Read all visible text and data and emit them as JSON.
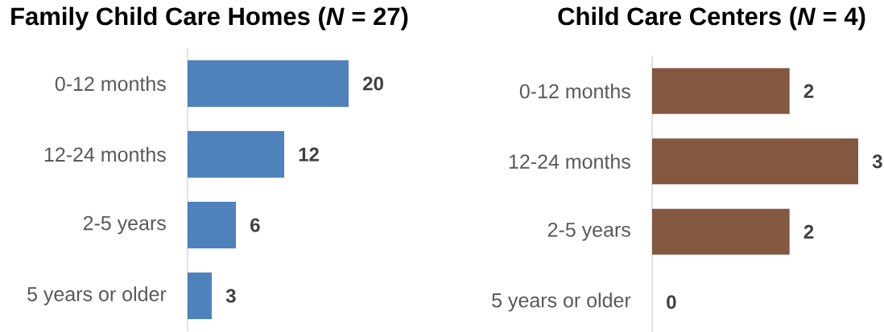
{
  "chart_data": [
    {
      "type": "bar",
      "orientation": "horizontal",
      "title": "Family Child Care Homes (*N* = 27)",
      "categories": [
        "0-12 months",
        "12-24 months",
        "2-5 years",
        "5 years or older"
      ],
      "values": [
        20,
        12,
        6,
        3
      ],
      "color": "#4f81bd",
      "data_labels": true,
      "tick_labels": "y"
    },
    {
      "type": "bar",
      "orientation": "horizontal",
      "title": "Child Care Centers (*N* = 4)",
      "categories": [
        "0-12 months",
        "12-24 months",
        "2-5 years",
        "5 years or older"
      ],
      "values": [
        2,
        3,
        2,
        0
      ],
      "color": "#845741",
      "data_labels": true,
      "tick_labels": "y"
    }
  ]
}
